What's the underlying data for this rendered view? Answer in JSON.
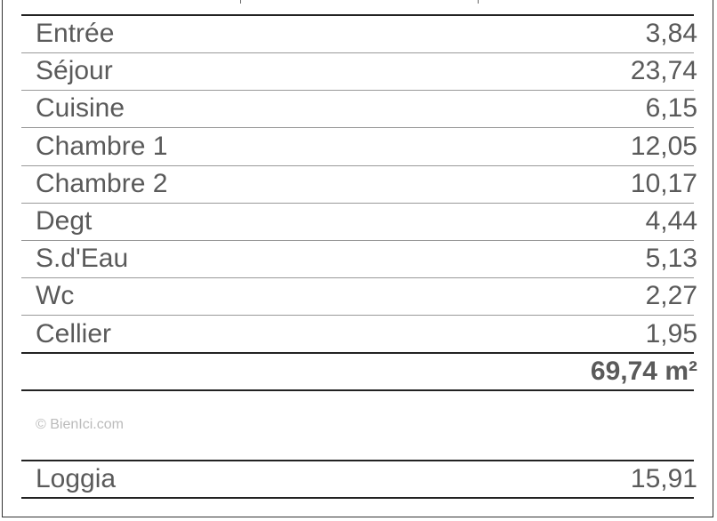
{
  "watermark": "© BienIci.com",
  "rooms": [
    {
      "name": "Entrée",
      "area": "3,84"
    },
    {
      "name": "Séjour",
      "area": "23,74"
    },
    {
      "name": "Cuisine",
      "area": "6,15"
    },
    {
      "name": "Chambre 1",
      "area": "12,05"
    },
    {
      "name": "Chambre 2",
      "area": "10,17"
    },
    {
      "name": "Degt",
      "area": "4,44"
    },
    {
      "name": "S.d'Eau",
      "area": "5,13"
    },
    {
      "name": "Wc",
      "area": "2,27"
    },
    {
      "name": "Cellier",
      "area": "1,95"
    }
  ],
  "total": "69,74 m²",
  "annex": {
    "name": "Loggia",
    "area": "15,91"
  }
}
